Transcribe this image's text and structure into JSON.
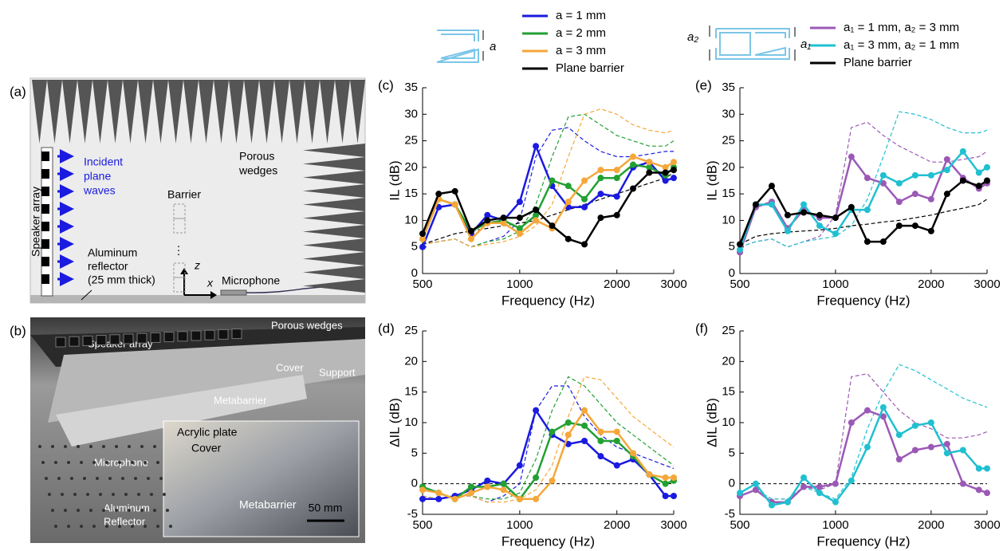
{
  "chart_data": [
    {
      "type": "line",
      "label": "(c)",
      "xlabel": "Frequency (Hz)",
      "ylabel": "IL (dB)",
      "xscale": "log",
      "xlim": [
        500,
        3000
      ],
      "xticks": [
        500,
        1000,
        2000,
        3000
      ],
      "ylim": [
        0,
        35
      ],
      "yticks": [
        0,
        5,
        10,
        15,
        20,
        25,
        30,
        35
      ],
      "x": [
        500,
        561,
        630,
        707,
        794,
        891,
        1000,
        1122,
        1260,
        1414,
        1587,
        1782,
        2000,
        2245,
        2520,
        2828,
        3000
      ],
      "series": [
        {
          "name": "a = 1 mm",
          "color": "#1a1ae0",
          "markers": true,
          "values": [
            5,
            12.5,
            13,
            7.5,
            11,
            10,
            13.5,
            24,
            16.5,
            12.5,
            12.5,
            15,
            14.5,
            20,
            21,
            17.5,
            18
          ]
        },
        {
          "name": "a = 2 mm",
          "color": "#22a032",
          "markers": true,
          "values": [
            6.5,
            14,
            13,
            8,
            9.5,
            10,
            8.5,
            11,
            17.5,
            16.5,
            14,
            18,
            18,
            20.5,
            20,
            18.5,
            20
          ]
        },
        {
          "name": "a = 3 mm",
          "color": "#f5a73a",
          "markers": true,
          "values": [
            6.5,
            14,
            13,
            6.5,
            9.5,
            9.5,
            7.5,
            10,
            8.5,
            13.5,
            17.5,
            19.5,
            19.5,
            22,
            21,
            20,
            21
          ]
        },
        {
          "name": "Plane barrier",
          "color": "#000000",
          "markers": true,
          "values": [
            7.5,
            15,
            15.5,
            8,
            10,
            10.5,
            10.5,
            12,
            9,
            6.5,
            5.5,
            10.5,
            11,
            16,
            19,
            19,
            19.5
          ]
        },
        {
          "color": "#1a1ae0",
          "dashed": true,
          "values": [
            5.5,
            6,
            6.5,
            5,
            6,
            7,
            10,
            22,
            27,
            27.5,
            25,
            23,
            22,
            22,
            22.5,
            23,
            23
          ]
        },
        {
          "color": "#22a032",
          "dashed": true,
          "values": [
            5.5,
            6,
            6.5,
            5,
            6,
            6.5,
            8,
            13,
            22,
            29.5,
            30,
            28,
            26,
            25,
            24,
            24,
            25
          ]
        },
        {
          "color": "#f5a73a",
          "dashed": true,
          "values": [
            5.5,
            6,
            6.5,
            5,
            5.5,
            6,
            7,
            9,
            13,
            22,
            30,
            31,
            30,
            28,
            27,
            26.5,
            27
          ]
        },
        {
          "color": "#000000",
          "dashed": true,
          "values": [
            5.5,
            6.5,
            7.5,
            8,
            8.5,
            9,
            9.5,
            10,
            11,
            12,
            13,
            14,
            15,
            16,
            17,
            18,
            19
          ]
        }
      ]
    },
    {
      "type": "line",
      "label": "(d)",
      "xlabel": "Frequency (Hz)",
      "ylabel": "ΔIL (dB)",
      "xscale": "log",
      "xlim": [
        500,
        3000
      ],
      "xticks": [
        500,
        1000,
        2000,
        3000
      ],
      "ylim": [
        -5,
        25
      ],
      "yticks": [
        -5,
        0,
        5,
        10,
        15,
        20,
        25
      ],
      "reference_line": 0,
      "x": [
        500,
        561,
        630,
        707,
        794,
        891,
        1000,
        1122,
        1260,
        1414,
        1587,
        1782,
        2000,
        2245,
        2520,
        2828,
        3000
      ],
      "series": [
        {
          "color": "#1a1ae0",
          "markers": true,
          "values": [
            -2.5,
            -2.5,
            -2,
            -1,
            0.5,
            0,
            3,
            12,
            8,
            6.5,
            7,
            4.5,
            3,
            4,
            1.5,
            -2,
            -2
          ]
        },
        {
          "color": "#22a032",
          "markers": true,
          "values": [
            -0.5,
            -1.5,
            -2.5,
            -0.5,
            -0.5,
            0,
            -2.5,
            1,
            8.5,
            10,
            9.5,
            7,
            7,
            4.5,
            1.5,
            0,
            0.5
          ]
        },
        {
          "color": "#f5a73a",
          "markers": true,
          "values": [
            -1,
            -1.5,
            -2.5,
            -1.5,
            -0.5,
            -1,
            -2.5,
            -2.5,
            0.5,
            8,
            12,
            8.5,
            8.5,
            5,
            1.5,
            1,
            1
          ]
        },
        {
          "color": "#1a1ae0",
          "dashed": true,
          "values": [
            -2,
            -2.5,
            -2,
            -2,
            -3,
            -2,
            0,
            12,
            16,
            16,
            11,
            8,
            6,
            5,
            4,
            3,
            2.5
          ]
        },
        {
          "color": "#22a032",
          "dashed": true,
          "values": [
            -2,
            -2.5,
            -2,
            -2,
            -2.5,
            -2.5,
            -1.5,
            4,
            12,
            17.5,
            16,
            13,
            10,
            8,
            6,
            4,
            3
          ]
        },
        {
          "color": "#f5a73a",
          "dashed": true,
          "values": [
            -2,
            -2.5,
            -2,
            -2,
            -3,
            -3,
            -2.5,
            -1,
            3,
            11,
            17.5,
            17,
            14,
            11,
            9,
            7,
            6
          ]
        }
      ]
    },
    {
      "type": "line",
      "label": "(e)",
      "xlabel": "Frequency (Hz)",
      "ylabel": "IL (dB)",
      "xscale": "log",
      "xlim": [
        500,
        3000
      ],
      "xticks": [
        500,
        1000,
        2000,
        3000
      ],
      "ylim": [
        0,
        35
      ],
      "yticks": [
        0,
        5,
        10,
        15,
        20,
        25,
        30,
        35
      ],
      "x": [
        500,
        561,
        630,
        707,
        794,
        891,
        1000,
        1122,
        1260,
        1414,
        1587,
        1782,
        2000,
        2245,
        2520,
        2828,
        3000
      ],
      "series": [
        {
          "name": "a₁ = 1 mm, a₂ = 3 mm",
          "color": "#9b59b6",
          "markers": true,
          "values": [
            4,
            12.5,
            13.5,
            8.5,
            12,
            10.5,
            10.5,
            22,
            18,
            17,
            13.5,
            15,
            14,
            21.5,
            18,
            16,
            17
          ]
        },
        {
          "name": "a₁ = 3 mm, a₂ = 1 mm",
          "color": "#20c0d0",
          "markers": true,
          "values": [
            4.5,
            13,
            13,
            8,
            13,
            9,
            7.5,
            12,
            12,
            18.5,
            17,
            18.5,
            18.5,
            19.5,
            23,
            19,
            20
          ]
        },
        {
          "name": "Plane barrier",
          "color": "#000000",
          "markers": true,
          "values": [
            5.5,
            13,
            16.5,
            11,
            11.5,
            11,
            10.5,
            12.5,
            6,
            6,
            9,
            9,
            8,
            15,
            17.5,
            16.5,
            17.5
          ]
        },
        {
          "color": "#9b59b6",
          "dashed": true,
          "values": [
            5,
            6,
            6.5,
            5,
            6,
            7,
            11,
            27.5,
            28.5,
            26,
            24,
            22.5,
            21,
            21,
            21.5,
            22,
            23
          ]
        },
        {
          "color": "#20c0d0",
          "dashed": true,
          "values": [
            5,
            6,
            6.5,
            5,
            6,
            6.5,
            7,
            9,
            14,
            22,
            30.5,
            30,
            29,
            27.5,
            26.5,
            26.5,
            27
          ]
        },
        {
          "color": "#000000",
          "dashed": true,
          "values": [
            5.5,
            7,
            7.5,
            7.8,
            8,
            8.2,
            8.5,
            9,
            9.3,
            9.7,
            10,
            10.5,
            11,
            11.7,
            12.3,
            13,
            14
          ]
        }
      ]
    },
    {
      "type": "line",
      "label": "(f)",
      "xlabel": "Frequency (Hz)",
      "ylabel": "ΔIL (dB)",
      "xscale": "log",
      "xlim": [
        500,
        3000
      ],
      "xticks": [
        500,
        1000,
        2000,
        3000
      ],
      "ylim": [
        -5,
        25
      ],
      "yticks": [
        -5,
        0,
        5,
        10,
        15,
        20,
        25
      ],
      "reference_line": 0,
      "x": [
        500,
        561,
        630,
        707,
        794,
        891,
        1000,
        1122,
        1260,
        1414,
        1587,
        1782,
        2000,
        2245,
        2520,
        2828,
        3000
      ],
      "series": [
        {
          "color": "#9b59b6",
          "markers": true,
          "values": [
            -2,
            -1,
            -3,
            -3,
            -0.5,
            -0.5,
            0,
            10,
            12,
            11,
            4,
            5.5,
            6,
            6.5,
            0,
            -1,
            -1.5
          ]
        },
        {
          "color": "#20c0d0",
          "markers": true,
          "values": [
            -1.5,
            0,
            -3.5,
            -3,
            1,
            -1.5,
            -3,
            0.5,
            6,
            12.5,
            8,
            9.5,
            10,
            5,
            5.5,
            2.5,
            2.5
          ]
        },
        {
          "color": "#9b59b6",
          "dashed": true,
          "values": [
            -2,
            -1,
            -2.5,
            -2.5,
            -0.5,
            -1,
            0,
            17.5,
            18,
            15,
            12,
            10,
            9,
            7.5,
            7.5,
            8,
            8.5
          ]
        },
        {
          "color": "#20c0d0",
          "dashed": true,
          "values": [
            -2,
            -1,
            -2.5,
            -2.5,
            -0.5,
            -1.5,
            -2.5,
            1,
            9,
            15,
            19.5,
            18.5,
            17,
            15.5,
            14,
            13,
            12.5
          ]
        }
      ]
    }
  ],
  "icons": {
    "single_gap": "a",
    "double_gap_left": "a₂",
    "double_gap_right": "a₁"
  },
  "panel_a": {
    "label": "(a)",
    "speaker_array": "Speaker array",
    "incident": [
      "Incident",
      "plane",
      "waves"
    ],
    "porous": [
      "Porous",
      "wedges"
    ],
    "barrier": "Barrier",
    "dots": "⋮",
    "reflector": [
      "Aluminum",
      "reflector",
      "(25 mm thick)"
    ],
    "microphone": "Microphone",
    "z": "z",
    "x": "x"
  },
  "panel_b": {
    "label": "(b)",
    "porous": "Porous wedges",
    "speaker_array": "Speaker array",
    "cover": "Cover",
    "support": "Support",
    "metabarrier": "Metabarrier",
    "microphone": "Microphone",
    "reflector": [
      "Aluminum",
      "Reflector"
    ],
    "inset_acrylic": "Acrylic plate",
    "inset_cover": "Cover",
    "inset_metabarrier": "Metabarrier",
    "scale": "50 mm"
  }
}
